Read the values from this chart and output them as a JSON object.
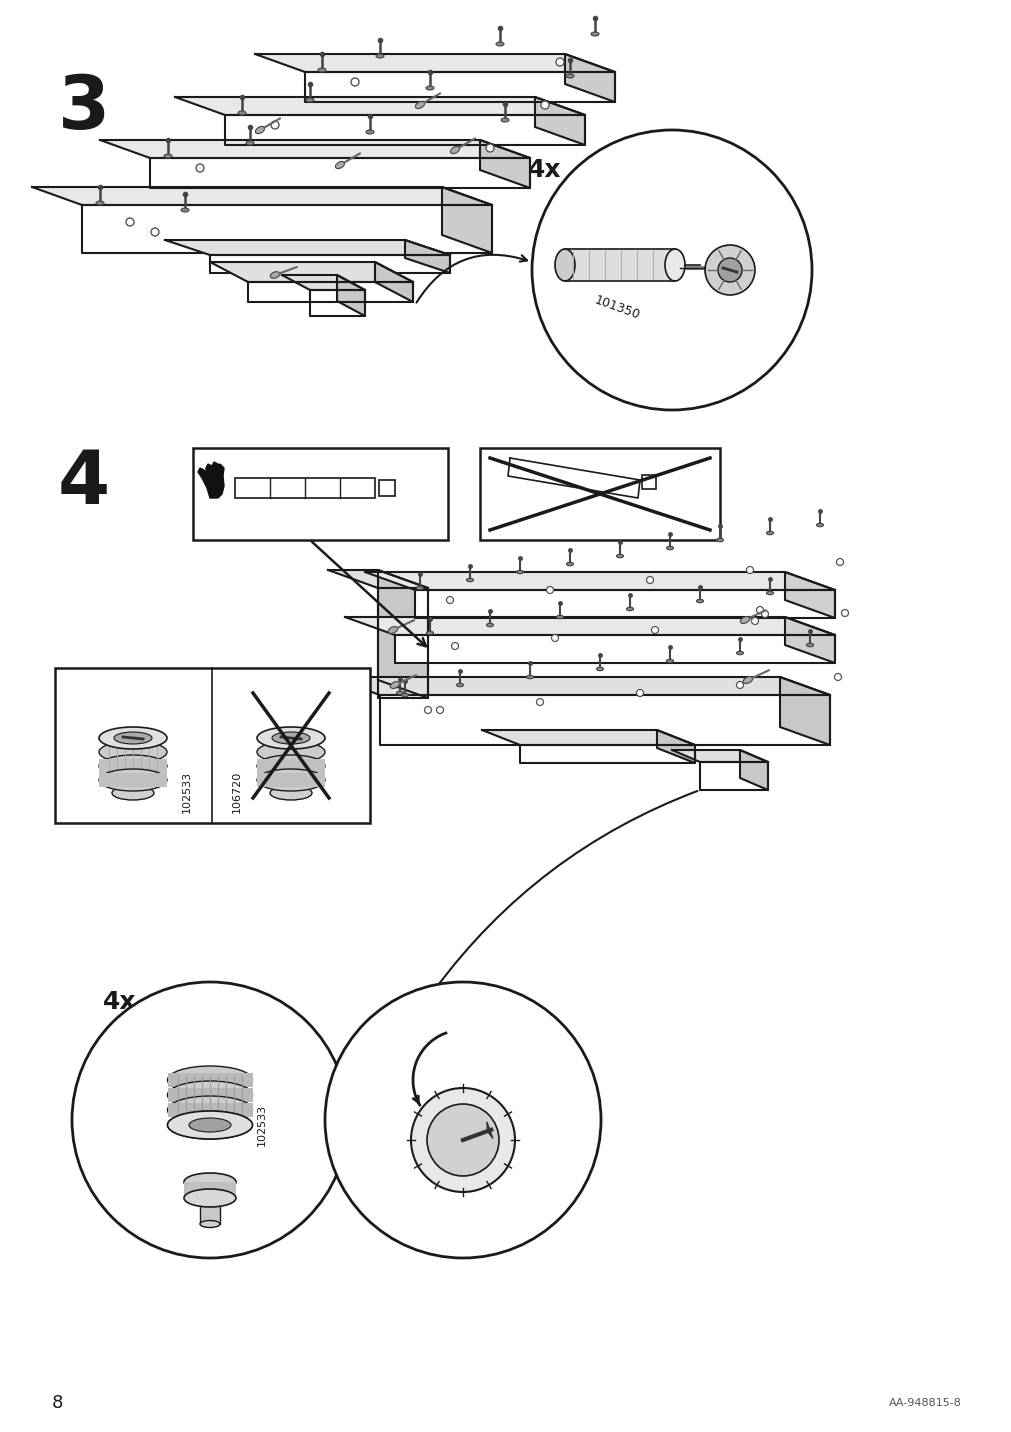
{
  "page_number": "8",
  "doc_code": "AA-948815-8",
  "bg_color": "#ffffff",
  "step3_label": "3",
  "step4_label": "4",
  "step3_4x_label": "4x",
  "step4_4x_label": "4x",
  "part_code_1": "101350",
  "part_code_2": "102533",
  "part_code_3": "106720",
  "text_color": "#1a1a1a",
  "line_color": "#1a1a1a"
}
